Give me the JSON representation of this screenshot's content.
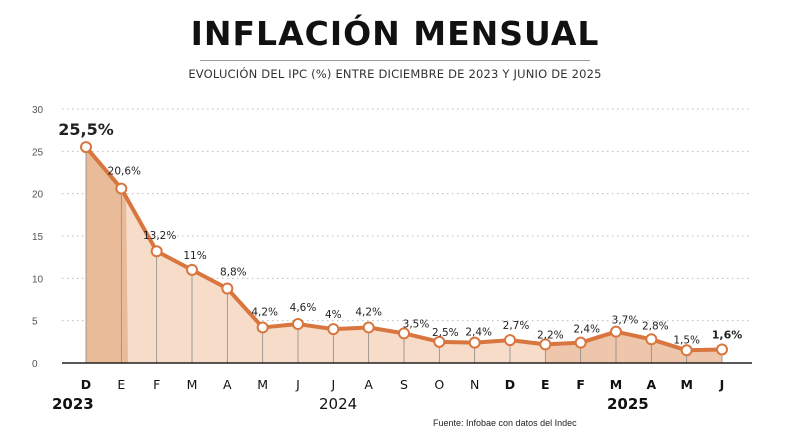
{
  "header": {
    "title": "INFLACIÓN MENSUAL",
    "subtitle": "EVOLUCIÓN DEL IPC (%) ENTRE DICIEMBRE DE 2023 Y JUNIO DE 2025"
  },
  "years": {
    "y2023": "2023",
    "y2024": "2024",
    "y2025": "2025"
  },
  "source": "Fuente: Infobae con datos del Indec",
  "colors": {
    "line": "#d9763f",
    "fill": "#f6dcc9",
    "fill_dark": "#e7b591",
    "marker_fill": "#ffffff",
    "grid": "#bdbdbd"
  },
  "chart_data": {
    "type": "area",
    "categories": [
      "D",
      "E",
      "F",
      "M",
      "A",
      "M",
      "J",
      "J",
      "A",
      "S",
      "O",
      "N",
      "D",
      "E",
      "F",
      "M",
      "A",
      "M",
      "J"
    ],
    "bold_categories": [
      0,
      12,
      13,
      14,
      15,
      16,
      17,
      18
    ],
    "values": [
      25.5,
      20.6,
      13.2,
      11,
      8.8,
      4.2,
      4.6,
      4,
      4.2,
      3.5,
      2.5,
      2.4,
      2.7,
      2.2,
      2.4,
      3.7,
      2.8,
      1.5,
      1.6
    ],
    "labels": [
      "25,5%",
      "20,6%",
      "13,2%",
      "11%",
      "8,8%",
      "4,2%",
      "4,6%",
      "4%",
      "4,2%",
      "3,5%",
      "2,5%",
      "2,4%",
      "2,7%",
      "2,2%",
      "2,4%",
      "3,7%",
      "2,8%",
      "1,5%",
      "1,6%"
    ],
    "bold_labels": [
      0,
      18
    ],
    "ylim": [
      0,
      30
    ],
    "yticks": [
      0,
      5,
      10,
      15,
      20,
      25,
      30
    ],
    "grid": true
  }
}
